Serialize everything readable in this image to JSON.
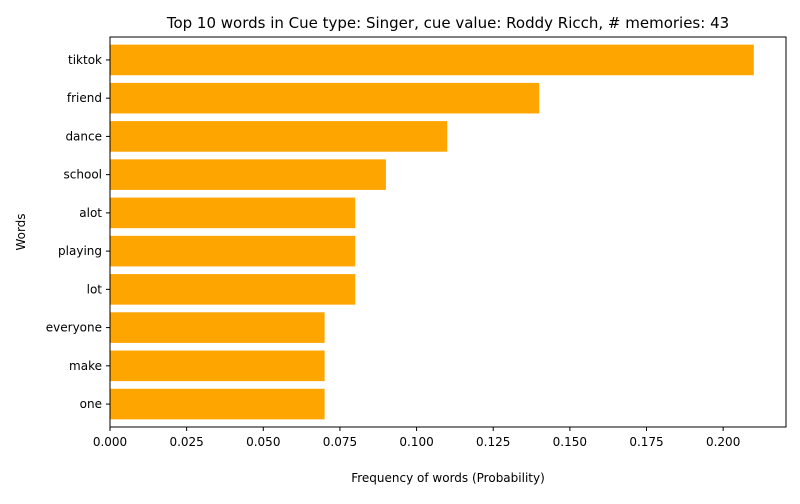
{
  "chart_data": {
    "type": "bar",
    "orientation": "horizontal",
    "title": "Top 10 words in Cue type: Singer, cue value: Roddy Ricch, # memories: 43",
    "xlabel": "Frequency of words (Probability)",
    "ylabel": "Words",
    "categories": [
      "tiktok",
      "friend",
      "dance",
      "school",
      "alot",
      "playing",
      "lot",
      "everyone",
      "make",
      "one"
    ],
    "values": [
      0.21,
      0.14,
      0.11,
      0.09,
      0.08,
      0.08,
      0.08,
      0.07,
      0.07,
      0.07
    ],
    "xlim": [
      0,
      0.2205
    ],
    "xticks": [
      "0.000",
      "0.025",
      "0.050",
      "0.075",
      "0.100",
      "0.125",
      "0.150",
      "0.175",
      "0.200"
    ],
    "bar_color": "#ffa500",
    "grid": false,
    "legend": "none"
  }
}
